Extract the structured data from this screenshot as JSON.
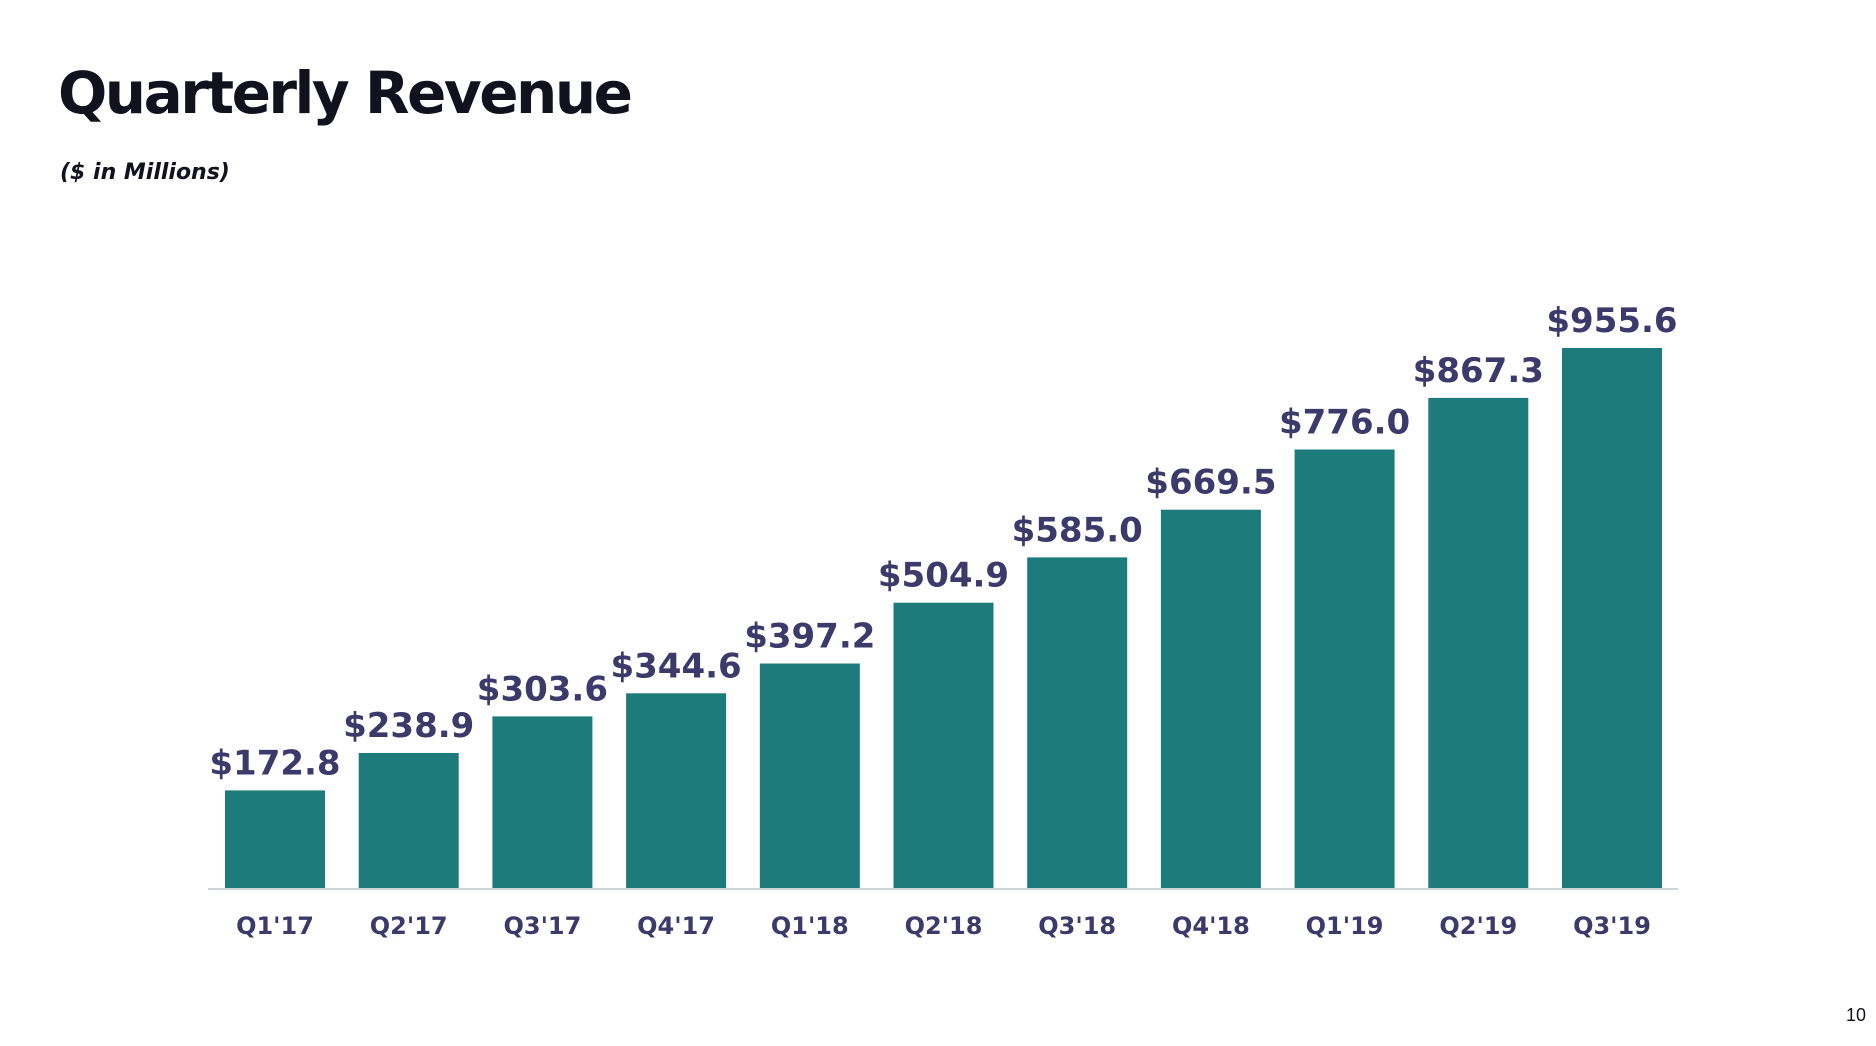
{
  "slide": {
    "title": "Quarterly Revenue",
    "subtitle": "($ in Millions)",
    "page_number": "10"
  },
  "colors": {
    "bar": "#1e7b7c",
    "label": "#3b3a6b",
    "title": "#12121f",
    "baseline": "#d0d3da"
  },
  "chart_data": {
    "type": "bar",
    "title": "Quarterly Revenue",
    "subtitle": "($ in Millions)",
    "xlabel": "",
    "ylabel": "",
    "ylim": [
      0,
      1000
    ],
    "grid": false,
    "legend": "none",
    "categories": [
      "Q1'17",
      "Q2'17",
      "Q3'17",
      "Q4'17",
      "Q1'18",
      "Q2'18",
      "Q3'18",
      "Q4'18",
      "Q1'19",
      "Q2'19",
      "Q3'19"
    ],
    "values": [
      172.8,
      238.9,
      303.6,
      344.6,
      397.2,
      504.9,
      585.0,
      669.5,
      776.0,
      867.3,
      955.6
    ],
    "data_labels": [
      "$172.8",
      "$238.9",
      "$303.6",
      "$344.6",
      "$397.2",
      "$504.9",
      "$585.0",
      "$669.5",
      "$776.0",
      "$867.3",
      "$955.6"
    ]
  }
}
